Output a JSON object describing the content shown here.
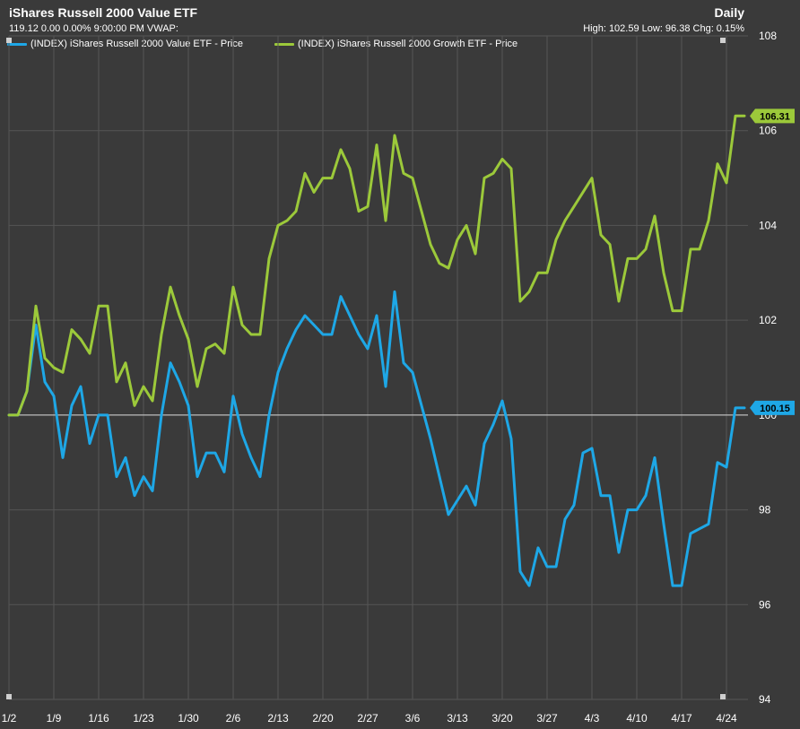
{
  "header": {
    "title": "iShares Russell 2000 Value ETF",
    "period": "Daily",
    "quote_line": "119.12 0.00 0.00% 9:00:00 PM VWAP:",
    "stats_line": "High: 102.59 Low: 96.38 Chg: 0.15%"
  },
  "colors": {
    "background": "#3a3a3a",
    "grid": "#555555",
    "value_series": "#1ea7e6",
    "growth_series": "#9cc93a",
    "baseline": "#d8d8d8"
  },
  "chart_data": {
    "type": "line",
    "title": "iShares Russell 2000 Value ETF",
    "xlabel": "",
    "ylabel": "",
    "ylim": [
      94,
      108
    ],
    "y_ticks": [
      94,
      96,
      98,
      100,
      102,
      104,
      106,
      108
    ],
    "x_tick_labels": [
      "1/2",
      "1/9",
      "1/16",
      "1/23",
      "1/30",
      "2/6",
      "2/13",
      "2/20",
      "2/27",
      "3/6",
      "3/13",
      "3/20",
      "3/27",
      "4/3",
      "4/10",
      "4/17",
      "4/24"
    ],
    "x_tick_indices": [
      0,
      5,
      10,
      15,
      20,
      25,
      30,
      35,
      40,
      45,
      50,
      55,
      60,
      65,
      70,
      75,
      80
    ],
    "baseline": 100,
    "grid": true,
    "legend_position": "top-left",
    "series": [
      {
        "name": "(INDEX) iShares Russell 2000 Value ETF - Price",
        "color": "#1ea7e6",
        "last_label": "100.15",
        "values": [
          100.0,
          100.0,
          100.5,
          101.9,
          100.7,
          100.4,
          99.1,
          100.2,
          100.6,
          99.4,
          100.0,
          100.0,
          98.7,
          99.1,
          98.3,
          98.7,
          98.4,
          100.0,
          101.1,
          100.7,
          100.2,
          98.7,
          99.2,
          99.2,
          98.8,
          100.4,
          99.6,
          99.1,
          98.7,
          100.0,
          100.9,
          101.4,
          101.8,
          102.1,
          101.9,
          101.7,
          101.7,
          102.5,
          102.1,
          101.7,
          101.4,
          102.1,
          100.6,
          102.6,
          101.1,
          100.9,
          100.2,
          99.5,
          98.7,
          97.9,
          98.2,
          98.5,
          98.1,
          99.4,
          99.8,
          100.3,
          99.5,
          96.7,
          96.4,
          97.2,
          96.8,
          96.8,
          97.8,
          98.1,
          99.2,
          99.3,
          98.3,
          98.3,
          97.1,
          98.0,
          98.0,
          98.3,
          99.1,
          97.7,
          96.4,
          96.4,
          97.5,
          97.6,
          97.7,
          99.0,
          98.9,
          100.15,
          100.15
        ]
      },
      {
        "name": "(INDEX) iShares Russell 2000 Growth ETF - Price",
        "color": "#9cc93a",
        "last_label": "106.31",
        "values": [
          100.0,
          100.0,
          100.5,
          102.3,
          101.2,
          101.0,
          100.9,
          101.8,
          101.6,
          101.3,
          102.3,
          102.3,
          100.7,
          101.1,
          100.2,
          100.6,
          100.3,
          101.7,
          102.7,
          102.1,
          101.6,
          100.6,
          101.4,
          101.5,
          101.3,
          102.7,
          101.9,
          101.7,
          101.7,
          103.3,
          104.0,
          104.1,
          104.3,
          105.1,
          104.7,
          105.0,
          105.0,
          105.6,
          105.2,
          104.3,
          104.4,
          105.7,
          104.1,
          105.9,
          105.1,
          105.0,
          104.3,
          103.6,
          103.2,
          103.1,
          103.7,
          104.0,
          103.4,
          105.0,
          105.1,
          105.4,
          105.2,
          102.4,
          102.6,
          103.0,
          103.0,
          103.7,
          104.1,
          104.4,
          104.7,
          105.0,
          103.8,
          103.6,
          102.4,
          103.3,
          103.3,
          103.5,
          104.2,
          103.0,
          102.2,
          102.2,
          103.5,
          103.5,
          104.1,
          105.3,
          104.9,
          106.31,
          106.31
        ]
      }
    ]
  }
}
